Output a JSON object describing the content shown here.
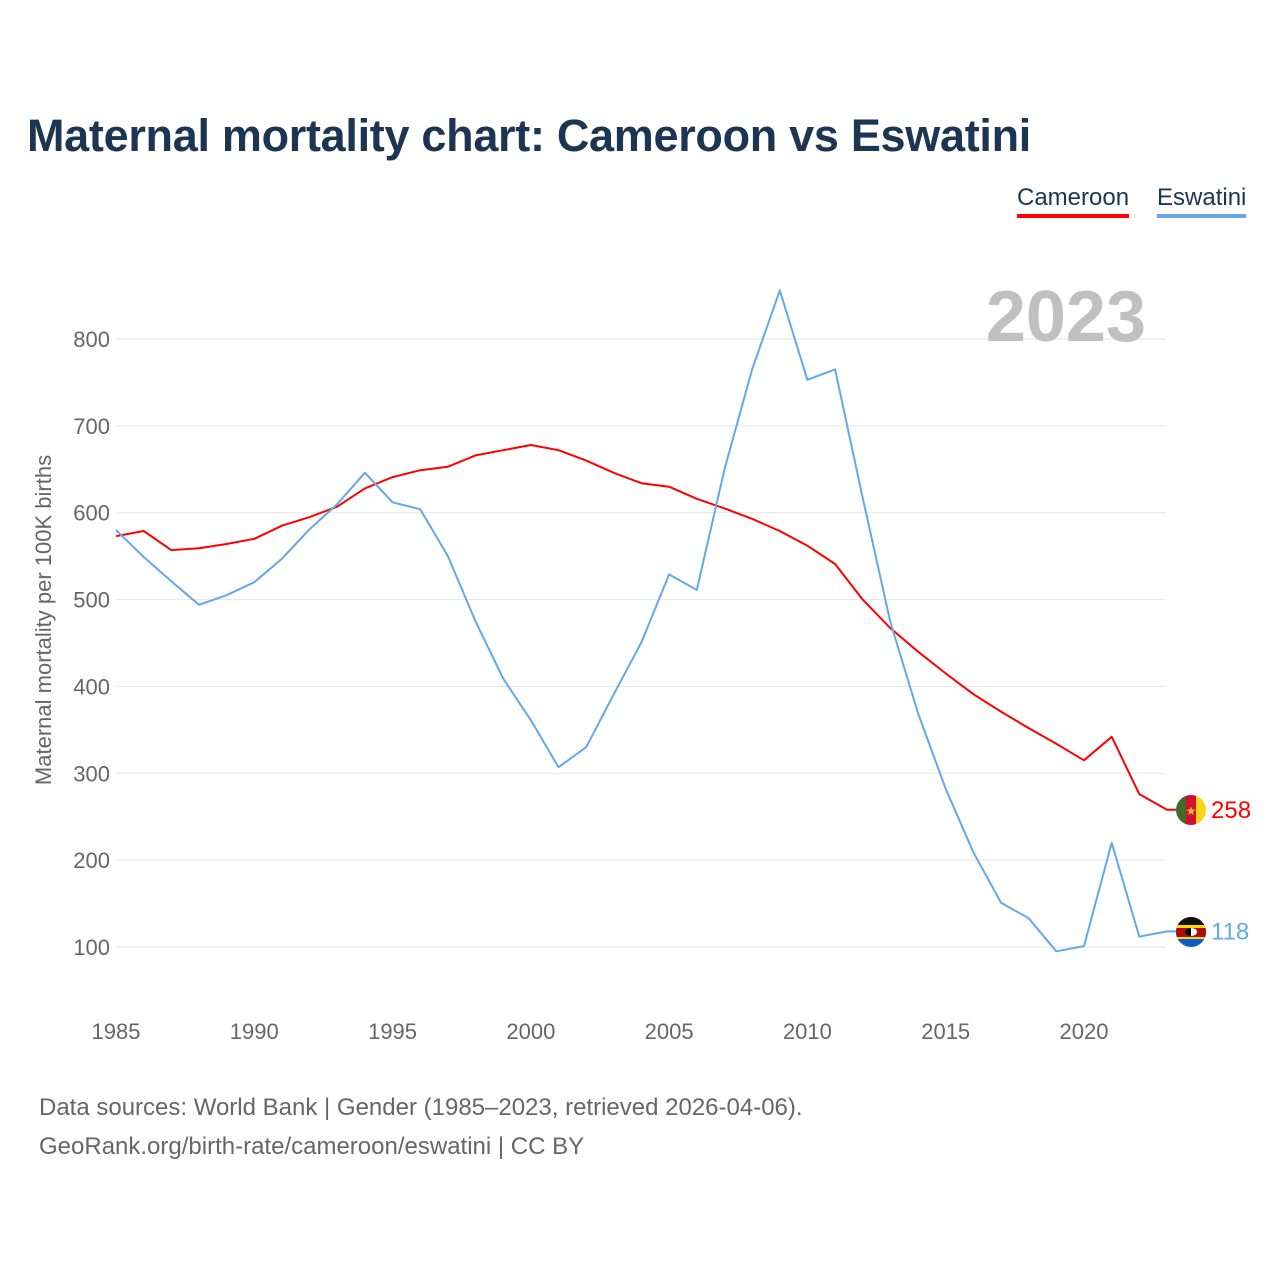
{
  "chart_data": {
    "type": "line",
    "title": "Maternal mortality chart: Cameroon vs Eswatini",
    "ylabel": "Maternal mortality per 100K births",
    "xlabel": "",
    "year_label": "2023",
    "xlim": [
      1985,
      2023
    ],
    "ylim": [
      50,
      900
    ],
    "x_ticks": [
      1985,
      1990,
      1995,
      2000,
      2005,
      2010,
      2015,
      2020
    ],
    "y_ticks": [
      100,
      200,
      300,
      400,
      500,
      600,
      700,
      800
    ],
    "grid": true,
    "legend_position": "top-right",
    "x": [
      1985,
      1986,
      1987,
      1988,
      1989,
      1990,
      1991,
      1992,
      1993,
      1994,
      1995,
      1996,
      1997,
      1998,
      1999,
      2000,
      2001,
      2002,
      2003,
      2004,
      2005,
      2006,
      2007,
      2008,
      2009,
      2010,
      2011,
      2012,
      2013,
      2014,
      2015,
      2016,
      2017,
      2018,
      2019,
      2020,
      2021,
      2022,
      2023
    ],
    "series": [
      {
        "name": "Cameroon",
        "color": "#ff0000",
        "end_label": "258",
        "values": [
          573,
          579,
          557,
          559,
          564,
          570,
          585,
          595,
          607,
          628,
          641,
          649,
          653,
          666,
          672,
          678,
          672,
          660,
          646,
          634,
          630,
          616,
          605,
          593,
          579,
          562,
          541,
          500,
          467,
          440,
          415,
          391,
          371,
          352,
          334,
          315,
          342,
          276,
          258
        ]
      },
      {
        "name": "Eswatini",
        "color": "#63a8ea",
        "end_label": "118",
        "values": [
          580,
          549,
          521,
          494,
          505,
          520,
          547,
          581,
          610,
          646,
          612,
          604,
          550,
          475,
          409,
          361,
          307,
          330,
          391,
          451,
          529,
          511,
          650,
          765,
          856,
          753,
          765,
          617,
          474,
          369,
          282,
          209,
          151,
          133,
          95,
          101,
          220,
          112,
          118
        ]
      }
    ]
  },
  "legend": {
    "cameroon": "Cameroon",
    "eswatini": "Eswatini"
  },
  "footer": {
    "line1": "Data sources: World Bank | Gender (1985–2023, retrieved 2026-04-06).",
    "line2": "GeoRank.org/birth-rate/cameroon/eswatini | CC BY"
  }
}
